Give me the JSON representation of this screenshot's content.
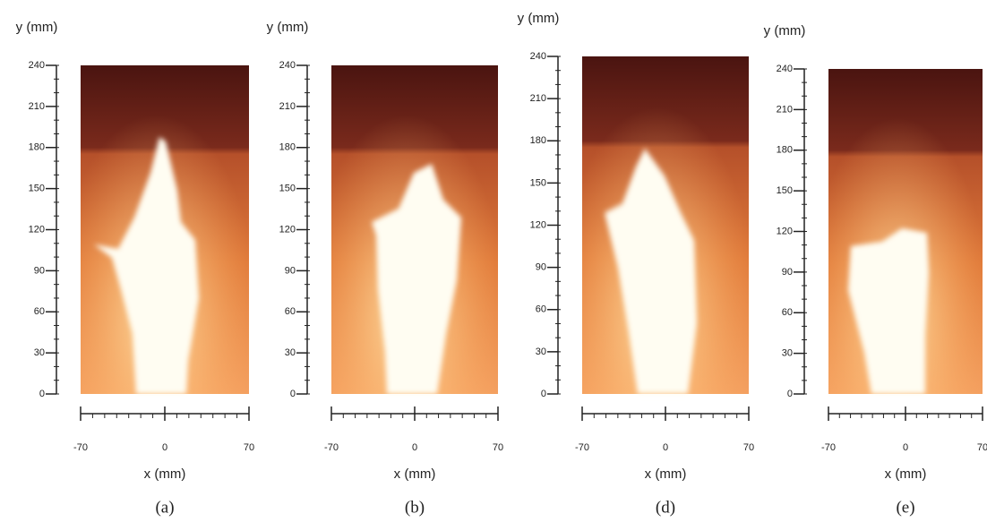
{
  "panels": [
    {
      "caption": "(a)",
      "y_label": "y (mm)",
      "x_label": "x (mm)",
      "ylim": [
        0,
        240
      ],
      "yticks": [
        0,
        30,
        60,
        90,
        120,
        150,
        180,
        210,
        240
      ],
      "xlim": [
        -70,
        70
      ],
      "xticks": [
        -70,
        0,
        70
      ]
    },
    {
      "caption": "(b)",
      "y_label": "y (mm)",
      "x_label": "x (mm)",
      "ylim": [
        0,
        240
      ],
      "yticks": [
        0,
        30,
        60,
        90,
        120,
        150,
        180,
        210,
        240
      ],
      "xlim": [
        -70,
        70
      ],
      "xticks": [
        -70,
        0,
        70
      ]
    },
    {
      "caption": "(d)",
      "y_label": "y (mm)",
      "x_label": "x (mm)",
      "ylim": [
        0,
        240
      ],
      "yticks": [
        0,
        30,
        60,
        90,
        120,
        150,
        180,
        210,
        240
      ],
      "xlim": [
        -70,
        70
      ],
      "xticks": [
        -70,
        0,
        70
      ]
    },
    {
      "caption": "(e)",
      "y_label": "y (mm)",
      "x_label": "x (mm)",
      "ylim": [
        0,
        240
      ],
      "yticks": [
        0,
        30,
        60,
        90,
        120,
        150,
        180,
        210,
        240
      ],
      "xlim": [
        -70,
        70
      ],
      "xticks": [
        -70,
        0,
        70
      ]
    }
  ]
}
